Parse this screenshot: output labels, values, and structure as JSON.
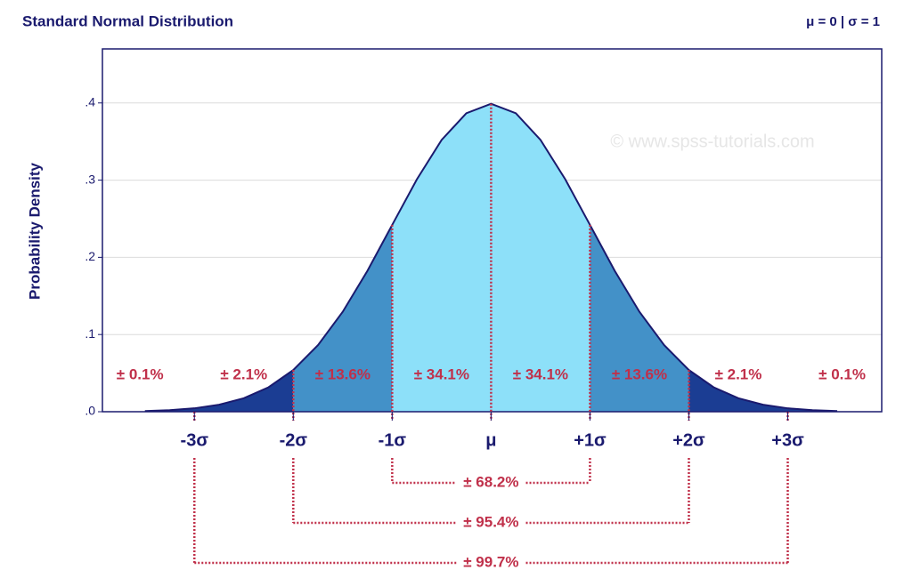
{
  "chart_data": {
    "type": "density",
    "title": "Standard Normal Distribution",
    "subtitle": "μ = 0 | σ = 1",
    "y_label": "Probability Density",
    "watermark": "© www.spss-tutorials.com",
    "x": [
      -3.5,
      -3.25,
      -3,
      -2.75,
      -2.5,
      -2.25,
      -2,
      -1.75,
      -1.5,
      -1.25,
      -1,
      -0.75,
      -0.5,
      -0.25,
      0,
      0.25,
      0.5,
      0.75,
      1,
      1.25,
      1.5,
      1.75,
      2,
      2.25,
      2.5,
      2.75,
      3,
      3.25,
      3.5
    ],
    "values": [
      0.0009,
      0.002,
      0.0044,
      0.0091,
      0.0175,
      0.0317,
      0.054,
      0.0863,
      0.1295,
      0.1826,
      0.242,
      0.3011,
      0.3521,
      0.3867,
      0.3989,
      0.3867,
      0.3521,
      0.3011,
      0.242,
      0.1826,
      0.1295,
      0.0863,
      0.054,
      0.0317,
      0.0175,
      0.0091,
      0.0044,
      0.002,
      0.0009
    ],
    "color": "#1a1a6e",
    "regions": [
      {
        "from": -3.5,
        "to": -2,
        "color": "#1b3d93"
      },
      {
        "from": -2,
        "to": -1,
        "color": "#4391c8"
      },
      {
        "from": -1,
        "to": 1,
        "color": "#8de0f9"
      },
      {
        "from": 1,
        "to": 2,
        "color": "#4391c8"
      },
      {
        "from": 2,
        "to": 3.5,
        "color": "#1b3d93"
      }
    ],
    "band_labels": [
      "± 0.1%",
      "± 2.1%",
      "± 13.6%",
      "± 34.1%",
      "± 34.1%",
      "± 13.6%",
      "± 2.1%",
      "± 0.1%"
    ],
    "intervals": [
      {
        "from": -1,
        "to": 1,
        "label": "± 68.2%"
      },
      {
        "from": -2,
        "to": 2,
        "label": "± 95.4%"
      },
      {
        "from": -3,
        "to": 3,
        "label": "± 99.7%"
      }
    ],
    "xlim": [
      -3.93,
      3.95
    ],
    "xticks": [
      {
        "value": -3,
        "label": "-3σ"
      },
      {
        "value": -2,
        "label": "-2σ"
      },
      {
        "value": -1,
        "label": "-1σ"
      },
      {
        "value": 0,
        "label": "μ"
      },
      {
        "value": 1,
        "label": "+1σ"
      },
      {
        "value": 2,
        "label": "+2σ"
      },
      {
        "value": 3,
        "label": "+3σ"
      }
    ],
    "ylim": [
      0,
      0.47
    ],
    "yticks": [
      {
        "value": 0,
        "label": ".0"
      },
      {
        "value": 0.1,
        "label": ".1"
      },
      {
        "value": 0.2,
        "label": ".2"
      },
      {
        "value": 0.3,
        "label": ".3"
      },
      {
        "value": 0.4,
        "label": ".4"
      }
    ],
    "grid": true
  }
}
